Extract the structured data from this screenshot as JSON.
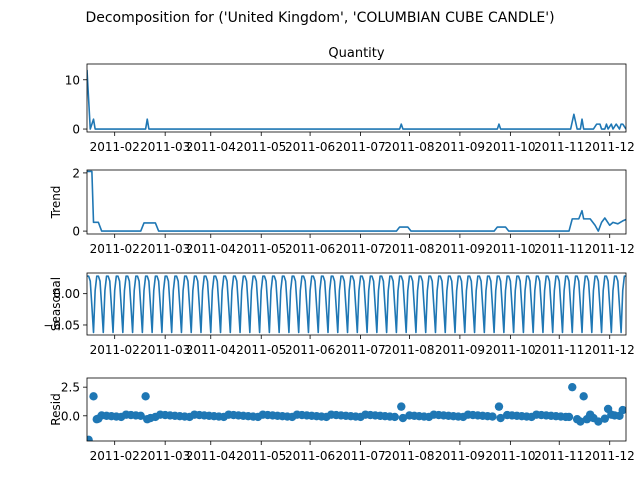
{
  "suptitle": "Decomposition for ('United Kingdom', 'COLUMBIAN CUBE CANDLE')",
  "colors": {
    "line": "#1f77b4",
    "axis": "#000000",
    "background": "#ffffff"
  },
  "chart_data": [
    {
      "type": "line",
      "title": "Quantity",
      "ylabel": "",
      "ylim": [
        -0.6,
        13.2
      ],
      "yticks": [
        0,
        10
      ],
      "ytick_labels": [
        "0",
        "10"
      ],
      "xlim": [
        0,
        331
      ],
      "xtick_positions": [
        17,
        48,
        76,
        107,
        137,
        168,
        198,
        229,
        260,
        290,
        321
      ],
      "xtick_labels": [
        "2011-02",
        "2011-03",
        "2011-04",
        "2011-05",
        "2011-06",
        "2011-07",
        "2011-08",
        "2011-09",
        "2011-10",
        "2011-11",
        "2011-12"
      ],
      "x_unit": "days since 2011-01-01",
      "points": [
        [
          0,
          12
        ],
        [
          2,
          0
        ],
        [
          4,
          2
        ],
        [
          5,
          0
        ],
        [
          36,
          0
        ],
        [
          37,
          2
        ],
        [
          38,
          0
        ],
        [
          192,
          0
        ],
        [
          193,
          1
        ],
        [
          194,
          0
        ],
        [
          252,
          0
        ],
        [
          253,
          1
        ],
        [
          254,
          0
        ],
        [
          297,
          0
        ],
        [
          299,
          3
        ],
        [
          301,
          0
        ],
        [
          303,
          0
        ],
        [
          304,
          2
        ],
        [
          305,
          0
        ],
        [
          311,
          0
        ],
        [
          313,
          1
        ],
        [
          315,
          1
        ],
        [
          316,
          0
        ],
        [
          318,
          0
        ],
        [
          319,
          1
        ],
        [
          320,
          0
        ],
        [
          322,
          1
        ],
        [
          323,
          0
        ],
        [
          325,
          1
        ],
        [
          327,
          0
        ],
        [
          328,
          1
        ],
        [
          329,
          1
        ],
        [
          331,
          0
        ]
      ]
    },
    {
      "type": "line",
      "title": "",
      "ylabel": "Trend",
      "ylim": [
        -0.1,
        2.1
      ],
      "yticks": [
        0,
        2
      ],
      "ytick_labels": [
        "0",
        "2"
      ],
      "xlim": [
        0,
        331
      ],
      "xtick_positions": [
        17,
        48,
        76,
        107,
        137,
        168,
        198,
        229,
        260,
        290,
        321
      ],
      "xtick_labels": [
        "2011-02",
        "2011-03",
        "2011-04",
        "2011-05",
        "2011-06",
        "2011-07",
        "2011-08",
        "2011-09",
        "2011-10",
        "2011-11",
        "2011-12"
      ],
      "points": [
        [
          0,
          2.05
        ],
        [
          3,
          2.05
        ],
        [
          4,
          0.3
        ],
        [
          7,
          0.3
        ],
        [
          9,
          0
        ],
        [
          33,
          0
        ],
        [
          35,
          0.28
        ],
        [
          42,
          0.28
        ],
        [
          44,
          0
        ],
        [
          190,
          0
        ],
        [
          192,
          0.14
        ],
        [
          197,
          0.14
        ],
        [
          199,
          0
        ],
        [
          250,
          0
        ],
        [
          252,
          0.14
        ],
        [
          257,
          0.14
        ],
        [
          259,
          0
        ],
        [
          296,
          0
        ],
        [
          298,
          0.42
        ],
        [
          302,
          0.42
        ],
        [
          304,
          0.7
        ],
        [
          305,
          0.42
        ],
        [
          309,
          0.42
        ],
        [
          312,
          0.2
        ],
        [
          314,
          0
        ],
        [
          316,
          0.3
        ],
        [
          318,
          0.45
        ],
        [
          321,
          0.2
        ],
        [
          323,
          0.3
        ],
        [
          326,
          0.25
        ],
        [
          329,
          0.35
        ],
        [
          331,
          0.4
        ]
      ]
    },
    {
      "type": "line",
      "title": "",
      "ylabel": "Seasonal",
      "ylim": [
        -0.066,
        0.033
      ],
      "yticks": [
        0,
        -0.05
      ],
      "ytick_labels": [
        "0.00",
        "−0.05"
      ],
      "xlim": [
        0,
        331
      ],
      "xtick_positions": [
        17,
        48,
        76,
        107,
        137,
        168,
        198,
        229,
        260,
        290,
        321
      ],
      "xtick_labels": [
        "2011-02",
        "2011-03",
        "2011-04",
        "2011-05",
        "2011-06",
        "2011-07",
        "2011-08",
        "2011-09",
        "2011-10",
        "2011-11",
        "2011-12"
      ],
      "period": 6,
      "pattern": [
        0.028,
        0.028,
        0.02,
        -0.02,
        -0.062,
        0.005
      ]
    },
    {
      "type": "scatter",
      "title": "",
      "ylabel": "Resid",
      "ylim": [
        -2.2,
        3.3
      ],
      "yticks": [
        0,
        2.5
      ],
      "ytick_labels": [
        "0.0",
        "2.5"
      ],
      "xlim": [
        0,
        331
      ],
      "xtick_positions": [
        17,
        48,
        76,
        107,
        137,
        168,
        198,
        229,
        260,
        290,
        321
      ],
      "xtick_labels": [
        "2011-02",
        "2011-03",
        "2011-04",
        "2011-05",
        "2011-06",
        "2011-07",
        "2011-08",
        "2011-09",
        "2011-10",
        "2011-11",
        "2011-12"
      ],
      "baseline_step": 3,
      "baseline_jitter": 0.1,
      "outliers": [
        [
          1,
          -2.1
        ],
        [
          4,
          1.7
        ],
        [
          6,
          -0.3
        ],
        [
          7,
          -0.25
        ],
        [
          36,
          1.7
        ],
        [
          37,
          -0.3
        ],
        [
          39,
          -0.2
        ],
        [
          193,
          0.8
        ],
        [
          194,
          -0.2
        ],
        [
          253,
          0.8
        ],
        [
          254,
          -0.2
        ],
        [
          296,
          -0.1
        ],
        [
          298,
          2.5
        ],
        [
          301,
          -0.3
        ],
        [
          303,
          -0.5
        ],
        [
          305,
          1.7
        ],
        [
          307,
          -0.3
        ],
        [
          309,
          0.1
        ],
        [
          311,
          -0.2
        ],
        [
          314,
          -0.5
        ],
        [
          318,
          -0.25
        ],
        [
          320,
          0.6
        ],
        [
          322,
          0.1
        ],
        [
          329,
          0.5
        ]
      ]
    }
  ]
}
